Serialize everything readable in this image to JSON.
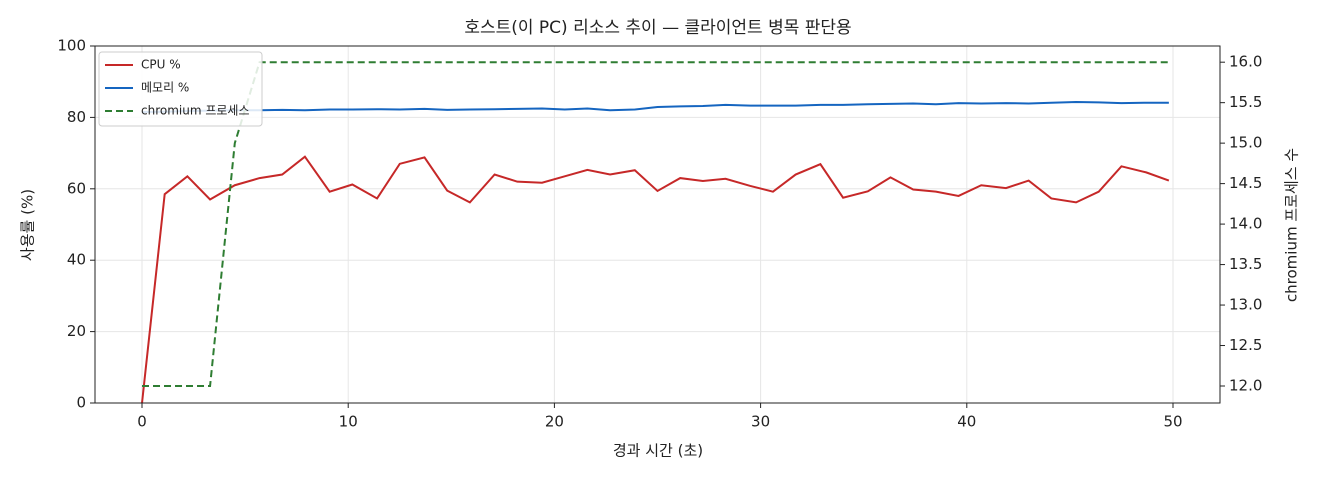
{
  "chart_data": {
    "type": "line",
    "title": "호스트(이 PC) 리소스 추이 — 클라이언트 병목 판단용",
    "x_label": "경과 시간 (초)",
    "y_label": "사용률 (%)",
    "y2_label": "chromium 프로세스 수",
    "x": [
      0,
      1.1,
      2.2,
      3.3,
      4.5,
      5.7,
      6.8,
      7.9,
      9.1,
      10.2,
      11.4,
      12.5,
      13.7,
      14.8,
      15.9,
      17.1,
      18.2,
      19.4,
      20.5,
      21.6,
      22.7,
      23.9,
      25.0,
      26.1,
      27.2,
      28.3,
      29.5,
      30.6,
      31.7,
      32.9,
      34.0,
      35.2,
      36.3,
      37.4,
      38.5,
      39.6,
      40.7,
      41.9,
      43.0,
      44.1,
      45.3,
      46.4,
      47.5,
      48.7,
      49.8
    ],
    "series": [
      {
        "name": "CPU %",
        "color": "#c62828",
        "style": "solid",
        "values": [
          0,
          58.5,
          63.5,
          57,
          61,
          63,
          64,
          69,
          59.2,
          61.2,
          57.3,
          67,
          68.8,
          59.5,
          56.2,
          64,
          62,
          61.7,
          63.5,
          65.3,
          64,
          65.2,
          59.4,
          63,
          62.2,
          62.8,
          60.8,
          59.2,
          64,
          66.9,
          57.5,
          59.3,
          63.2,
          59.8,
          59.2,
          58,
          61,
          60.2,
          62.3,
          57.3,
          56.2,
          59.2,
          66.3,
          64.6,
          62.3
        ]
      },
      {
        "name": "메모리 %",
        "color": "#1565c0",
        "style": "solid",
        "values": [
          81.5,
          81.6,
          81.8,
          81.9,
          82.0,
          82.0,
          82.1,
          82.0,
          82.2,
          82.2,
          82.3,
          82.2,
          82.4,
          82.1,
          82.2,
          82.3,
          82.4,
          82.5,
          82.2,
          82.5,
          82.0,
          82.2,
          82.9,
          83.1,
          83.2,
          83.5,
          83.3,
          83.3,
          83.3,
          83.5,
          83.5,
          83.7,
          83.8,
          83.9,
          83.7,
          84.0,
          83.9,
          84.0,
          83.9,
          84.1,
          84.3,
          84.2,
          84.0,
          84.1,
          84.1
        ]
      },
      {
        "name": "chromium 프로세스",
        "color": "#2e7d32",
        "style": "dashed",
        "axis": "y2",
        "values": [
          12,
          12,
          12,
          12,
          15,
          16,
          16,
          16,
          16,
          16,
          16,
          16,
          16,
          16,
          16,
          16,
          16,
          16,
          16,
          16,
          16,
          16,
          16,
          16,
          16,
          16,
          16,
          16,
          16,
          16,
          16,
          16,
          16,
          16,
          16,
          16,
          16,
          16,
          16,
          16,
          16,
          16,
          16,
          16,
          16
        ]
      }
    ],
    "xlim": [
      -2.28,
      52.28
    ],
    "xticks": [
      0,
      10,
      20,
      30,
      40,
      50
    ],
    "ylim": [
      0,
      100
    ],
    "yticks": [
      0,
      20,
      40,
      60,
      80,
      100
    ],
    "y2lim": [
      11.79,
      16.2
    ],
    "y2ticks": [
      {
        "value": 12,
        "label": "12.0"
      },
      {
        "value": 12.5,
        "label": "12.5"
      },
      {
        "value": 13,
        "label": "13.0"
      },
      {
        "value": 13.5,
        "label": "13.5"
      },
      {
        "value": 14,
        "label": "14.0"
      },
      {
        "value": 14.5,
        "label": "14.5"
      },
      {
        "value": 15,
        "label": "15.0"
      },
      {
        "value": 15.5,
        "label": "15.5"
      },
      {
        "value": 16,
        "label": "16.0"
      }
    ],
    "grid": true,
    "legend": "upper left"
  }
}
